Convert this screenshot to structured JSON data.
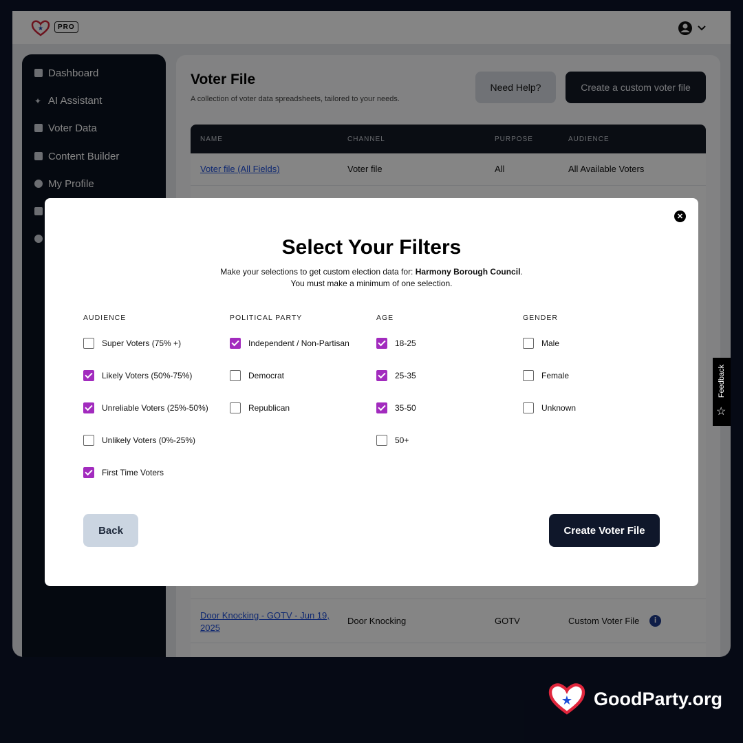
{
  "header": {
    "badge": "PRO"
  },
  "sidebar": {
    "items": [
      {
        "label": "Dashboard"
      },
      {
        "label": "AI Assistant"
      },
      {
        "label": "Voter Data"
      },
      {
        "label": "Content Builder"
      },
      {
        "label": "My Profile"
      }
    ]
  },
  "main": {
    "title": "Voter File",
    "subtitle": "A collection of voter data spreadsheets, tailored to your needs.",
    "help_button": "Need Help?",
    "create_button": "Create a custom voter file",
    "columns": [
      "NAME",
      "CHANNEL",
      "PURPOSE",
      "AUDIENCE"
    ],
    "rows": [
      {
        "name": "Voter file (All Fields)",
        "channel": "Voter file",
        "purpose": "All",
        "audience": "All Available Voters"
      },
      {
        "name": "Door Knocking - GOTV - Jun 19, 2025",
        "channel": "Door Knocking",
        "purpose": "GOTV",
        "audience": "Custom Voter File"
      }
    ]
  },
  "modal": {
    "title": "Select Your Filters",
    "subtitle_prefix": "Make your selections to get custom election data for: ",
    "office": "Harmony Borough Council",
    "subtitle_suffix": ".",
    "note": "You must make a minimum of one selection.",
    "groups": [
      {
        "heading": "AUDIENCE",
        "options": [
          {
            "label": "Super Voters (75% +)",
            "checked": false
          },
          {
            "label": "Likely Voters (50%-75%)",
            "checked": true
          },
          {
            "label": "Unreliable Voters (25%-50%)",
            "checked": true
          },
          {
            "label": "Unlikely Voters (0%-25%)",
            "checked": false
          },
          {
            "label": "First Time Voters",
            "checked": true
          }
        ]
      },
      {
        "heading": "POLITICAL PARTY",
        "options": [
          {
            "label": "Independent / Non-Partisan",
            "checked": true
          },
          {
            "label": "Democrat",
            "checked": false
          },
          {
            "label": "Republican",
            "checked": false
          }
        ]
      },
      {
        "heading": "AGE",
        "options": [
          {
            "label": "18-25",
            "checked": true
          },
          {
            "label": "25-35",
            "checked": true
          },
          {
            "label": "35-50",
            "checked": true
          },
          {
            "label": "50+",
            "checked": false
          }
        ]
      },
      {
        "heading": "GENDER",
        "options": [
          {
            "label": "Male",
            "checked": false
          },
          {
            "label": "Female",
            "checked": false
          },
          {
            "label": "Unknown",
            "checked": false
          }
        ]
      }
    ],
    "back_button": "Back",
    "create_button": "Create Voter File"
  },
  "feedback": {
    "label": "Feedback"
  },
  "brand": {
    "name": "GoodParty.org"
  },
  "colors": {
    "accent": "#a22bbe",
    "dark": "#0c1529"
  }
}
